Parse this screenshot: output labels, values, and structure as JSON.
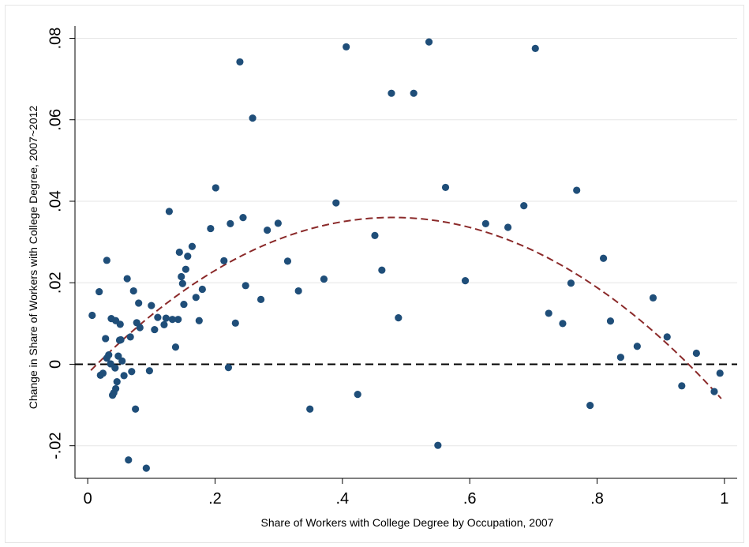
{
  "chart_data": {
    "type": "scatter",
    "xlabel": "Share of Workers with College Degree by Occupation, 2007",
    "ylabel": "Change in Share of Workers with College Degree, 2007~2012",
    "xlim": [
      -0.02,
      1.02
    ],
    "ylim": [
      -0.028,
      0.083
    ],
    "x_ticks": [
      0,
      0.2,
      0.4,
      0.6,
      0.8,
      1
    ],
    "x_tick_labels": [
      "0",
      ".2",
      ".4",
      ".6",
      ".8",
      "1"
    ],
    "y_ticks": [
      -0.02,
      0,
      0.02,
      0.04,
      0.06,
      0.08
    ],
    "y_tick_labels": [
      "-.02",
      "0",
      ".02",
      ".04",
      ".06",
      ".08"
    ],
    "grid": true,
    "reference_line": {
      "y": 0,
      "style": "dashed",
      "color": "#000000"
    },
    "fit_curve": {
      "type": "quadratic",
      "color": "#8b2a2a",
      "style": "dashed",
      "x_range": [
        0.005,
        0.995
      ],
      "coefficients": {
        "a": -0.167,
        "b": 0.16,
        "c": -0.0023
      }
    },
    "marker_color": "#1f4e79",
    "series": [
      {
        "points": [
          [
            0.007,
            0.012
          ],
          [
            0.018,
            0.0178
          ],
          [
            0.02,
            -0.0027
          ],
          [
            0.024,
            -0.0022
          ],
          [
            0.028,
            0.0063
          ],
          [
            0.03,
            0.0255
          ],
          [
            0.03,
            0.0015
          ],
          [
            0.033,
            0.0023
          ],
          [
            0.036,
            0.0001
          ],
          [
            0.037,
            0.0112
          ],
          [
            0.039,
            -0.0076
          ],
          [
            0.041,
            -0.007
          ],
          [
            0.043,
            -0.0009
          ],
          [
            0.044,
            -0.006
          ],
          [
            0.044,
            0.0107
          ],
          [
            0.046,
            -0.0043
          ],
          [
            0.048,
            0.002
          ],
          [
            0.05,
            0.0059
          ],
          [
            0.051,
            0.0098
          ],
          [
            0.052,
            0.006
          ],
          [
            0.054,
            0.0008
          ],
          [
            0.057,
            -0.0028
          ],
          [
            0.062,
            0.021
          ],
          [
            0.064,
            -0.0235
          ],
          [
            0.067,
            0.0067
          ],
          [
            0.069,
            -0.0018
          ],
          [
            0.072,
            0.018
          ],
          [
            0.075,
            -0.011
          ],
          [
            0.077,
            0.0102
          ],
          [
            0.08,
            0.015
          ],
          [
            0.082,
            0.009
          ],
          [
            0.092,
            -0.0255
          ],
          [
            0.097,
            -0.0016
          ],
          [
            0.1,
            0.0144
          ],
          [
            0.105,
            0.0085
          ],
          [
            0.11,
            0.0115
          ],
          [
            0.12,
            0.0097
          ],
          [
            0.123,
            0.0113
          ],
          [
            0.128,
            0.0375
          ],
          [
            0.133,
            0.011
          ],
          [
            0.138,
            0.0042
          ],
          [
            0.142,
            0.011
          ],
          [
            0.144,
            0.0275
          ],
          [
            0.147,
            0.0215
          ],
          [
            0.149,
            0.0198
          ],
          [
            0.151,
            0.0147
          ],
          [
            0.154,
            0.0233
          ],
          [
            0.157,
            0.0265
          ],
          [
            0.164,
            0.0289
          ],
          [
            0.17,
            0.0164
          ],
          [
            0.175,
            0.0107
          ],
          [
            0.18,
            0.0184
          ],
          [
            0.193,
            0.0333
          ],
          [
            0.201,
            0.0433
          ],
          [
            0.214,
            0.0254
          ],
          [
            0.221,
            -0.0008
          ],
          [
            0.224,
            0.0345
          ],
          [
            0.232,
            0.0101
          ],
          [
            0.239,
            0.0742
          ],
          [
            0.244,
            0.036
          ],
          [
            0.248,
            0.0193
          ],
          [
            0.259,
            0.0604
          ],
          [
            0.272,
            0.0159
          ],
          [
            0.282,
            0.0329
          ],
          [
            0.299,
            0.0346
          ],
          [
            0.314,
            0.0253
          ],
          [
            0.331,
            0.018
          ],
          [
            0.349,
            -0.011
          ],
          [
            0.371,
            0.0209
          ],
          [
            0.39,
            0.0396
          ],
          [
            0.406,
            0.0779
          ],
          [
            0.424,
            -0.0074
          ],
          [
            0.451,
            0.0316
          ],
          [
            0.462,
            0.0231
          ],
          [
            0.477,
            0.0665
          ],
          [
            0.488,
            0.0114
          ],
          [
            0.512,
            0.0665
          ],
          [
            0.536,
            0.0791
          ],
          [
            0.55,
            -0.0199
          ],
          [
            0.562,
            0.0434
          ],
          [
            0.593,
            0.0205
          ],
          [
            0.625,
            0.0345
          ],
          [
            0.66,
            0.0336
          ],
          [
            0.685,
            0.0389
          ],
          [
            0.703,
            0.0775
          ],
          [
            0.724,
            0.0125
          ],
          [
            0.746,
            0.01
          ],
          [
            0.759,
            0.0199
          ],
          [
            0.768,
            0.0427
          ],
          [
            0.789,
            -0.0101
          ],
          [
            0.81,
            0.026
          ],
          [
            0.821,
            0.0106
          ],
          [
            0.837,
            0.0017
          ],
          [
            0.863,
            0.0044
          ],
          [
            0.888,
            0.0163
          ],
          [
            0.91,
            0.0067
          ],
          [
            0.933,
            -0.0053
          ],
          [
            0.956,
            0.0027
          ],
          [
            0.984,
            -0.0067
          ],
          [
            0.993,
            -0.0022
          ]
        ]
      }
    ]
  }
}
